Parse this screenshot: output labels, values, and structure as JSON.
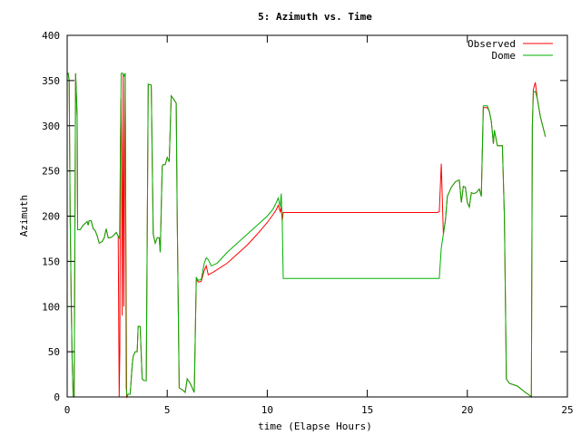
{
  "chart_data": {
    "type": "line",
    "title": "5: Azimuth vs. Time",
    "xlabel": "time (Elapse Hours)",
    "ylabel": "Azimuth",
    "xlim": [
      0,
      25
    ],
    "ylim": [
      0,
      400
    ],
    "xticks": [
      0,
      5,
      10,
      15,
      20,
      25
    ],
    "yticks": [
      0,
      50,
      100,
      150,
      200,
      250,
      300,
      350,
      400
    ],
    "grid": false,
    "legend_position": "top-right",
    "series": [
      {
        "name": "Observed",
        "color": "#ff0000",
        "points": [
          [
            0.0,
            358
          ],
          [
            0.05,
            358
          ],
          [
            0.1,
            350
          ],
          [
            0.15,
            200
          ],
          [
            0.2,
            110
          ],
          [
            0.25,
            40
          ],
          [
            0.3,
            0
          ],
          [
            0.35,
            0
          ],
          [
            0.42,
            358
          ],
          [
            0.5,
            310
          ],
          [
            0.52,
            185
          ],
          [
            0.65,
            185
          ],
          [
            0.8,
            190
          ],
          [
            1.0,
            194
          ],
          [
            1.05,
            190
          ],
          [
            1.1,
            195
          ],
          [
            1.2,
            195
          ],
          [
            1.3,
            186
          ],
          [
            1.4,
            184
          ],
          [
            1.5,
            178
          ],
          [
            1.6,
            170
          ],
          [
            1.75,
            172
          ],
          [
            1.85,
            176
          ],
          [
            1.95,
            186
          ],
          [
            2.05,
            176
          ],
          [
            2.15,
            176
          ],
          [
            2.3,
            178
          ],
          [
            2.45,
            182
          ],
          [
            2.55,
            178
          ],
          [
            2.6,
            0
          ],
          [
            2.63,
            50
          ],
          [
            2.66,
            270
          ],
          [
            2.69,
            330
          ],
          [
            2.72,
            270
          ],
          [
            2.75,
            90
          ],
          [
            2.8,
            358
          ],
          [
            2.83,
            100
          ],
          [
            2.87,
            270
          ],
          [
            2.9,
            358
          ],
          [
            2.93,
            200
          ],
          [
            2.97,
            0
          ],
          [
            3.05,
            3
          ],
          [
            3.15,
            3
          ],
          [
            3.25,
            35
          ],
          [
            3.3,
            45
          ],
          [
            3.4,
            50
          ],
          [
            3.5,
            50
          ],
          [
            3.55,
            78
          ],
          [
            3.65,
            78
          ],
          [
            3.75,
            20
          ],
          [
            3.85,
            18
          ],
          [
            3.95,
            18
          ],
          [
            4.05,
            346
          ],
          [
            4.2,
            345
          ],
          [
            4.3,
            180
          ],
          [
            4.4,
            170
          ],
          [
            4.5,
            176
          ],
          [
            4.6,
            176
          ],
          [
            4.65,
            160
          ],
          [
            4.75,
            255
          ],
          [
            4.8,
            257
          ],
          [
            4.9,
            257
          ],
          [
            5.0,
            265
          ],
          [
            5.1,
            260
          ],
          [
            5.2,
            333
          ],
          [
            5.3,
            330
          ],
          [
            5.45,
            325
          ],
          [
            5.5,
            200
          ],
          [
            5.6,
            10
          ],
          [
            5.75,
            8
          ],
          [
            5.9,
            5
          ],
          [
            6.0,
            20
          ],
          [
            6.15,
            15
          ],
          [
            6.25,
            10
          ],
          [
            6.35,
            5
          ],
          [
            6.45,
            130
          ],
          [
            6.55,
            127
          ],
          [
            6.7,
            128
          ],
          [
            6.85,
            140
          ],
          [
            6.95,
            145
          ],
          [
            7.05,
            135
          ],
          [
            7.3,
            138
          ],
          [
            8.0,
            148
          ],
          [
            8.5,
            158
          ],
          [
            9.0,
            168
          ],
          [
            9.5,
            180
          ],
          [
            10.0,
            193
          ],
          [
            10.3,
            202
          ],
          [
            10.45,
            207
          ],
          [
            10.55,
            212
          ],
          [
            10.65,
            205
          ],
          [
            10.7,
            210
          ],
          [
            10.75,
            195
          ],
          [
            10.8,
            204
          ],
          [
            11.5,
            204
          ],
          [
            13.0,
            204
          ],
          [
            15.0,
            204
          ],
          [
            17.0,
            204
          ],
          [
            18.5,
            204
          ],
          [
            18.6,
            205
          ],
          [
            18.7,
            258
          ],
          [
            18.8,
            180
          ],
          [
            18.9,
            195
          ],
          [
            19.0,
            222
          ],
          [
            19.2,
            232
          ],
          [
            19.4,
            238
          ],
          [
            19.6,
            240
          ],
          [
            19.7,
            215
          ],
          [
            19.8,
            233
          ],
          [
            19.9,
            232
          ],
          [
            20.0,
            215
          ],
          [
            20.1,
            210
          ],
          [
            20.2,
            226
          ],
          [
            20.3,
            225
          ],
          [
            20.45,
            226
          ],
          [
            20.6,
            230
          ],
          [
            20.7,
            222
          ],
          [
            20.8,
            320
          ],
          [
            21.0,
            320
          ],
          [
            21.1,
            316
          ],
          [
            21.2,
            305
          ],
          [
            21.3,
            280
          ],
          [
            21.35,
            295
          ],
          [
            21.5,
            278
          ],
          [
            21.75,
            278
          ],
          [
            21.85,
            200
          ],
          [
            21.95,
            20
          ],
          [
            22.1,
            15
          ],
          [
            22.5,
            12
          ],
          [
            22.9,
            5
          ],
          [
            23.1,
            2
          ],
          [
            23.2,
            0
          ],
          [
            23.25,
            300
          ],
          [
            23.3,
            340
          ],
          [
            23.4,
            348
          ],
          [
            23.5,
            330
          ],
          [
            23.65,
            310
          ],
          [
            23.9,
            288
          ]
        ]
      },
      {
        "name": "Dome",
        "color": "#00b000",
        "points": [
          [
            0.0,
            358
          ],
          [
            0.05,
            358
          ],
          [
            0.1,
            350
          ],
          [
            0.15,
            200
          ],
          [
            0.2,
            110
          ],
          [
            0.25,
            40
          ],
          [
            0.3,
            0
          ],
          [
            0.35,
            0
          ],
          [
            0.42,
            358
          ],
          [
            0.5,
            310
          ],
          [
            0.52,
            185
          ],
          [
            0.65,
            185
          ],
          [
            0.8,
            190
          ],
          [
            1.0,
            194
          ],
          [
            1.05,
            190
          ],
          [
            1.1,
            195
          ],
          [
            1.2,
            195
          ],
          [
            1.3,
            186
          ],
          [
            1.4,
            184
          ],
          [
            1.5,
            178
          ],
          [
            1.6,
            170
          ],
          [
            1.75,
            172
          ],
          [
            1.85,
            176
          ],
          [
            1.95,
            186
          ],
          [
            2.05,
            176
          ],
          [
            2.15,
            176
          ],
          [
            2.3,
            178
          ],
          [
            2.45,
            182
          ],
          [
            2.55,
            178
          ],
          [
            2.62,
            175
          ],
          [
            2.7,
            358
          ],
          [
            2.78,
            358
          ],
          [
            2.85,
            355
          ],
          [
            2.9,
            358
          ],
          [
            2.95,
            10
          ],
          [
            3.0,
            0
          ],
          [
            3.05,
            3
          ],
          [
            3.15,
            3
          ],
          [
            3.25,
            35
          ],
          [
            3.3,
            45
          ],
          [
            3.4,
            50
          ],
          [
            3.5,
            50
          ],
          [
            3.55,
            78
          ],
          [
            3.65,
            78
          ],
          [
            3.75,
            20
          ],
          [
            3.85,
            18
          ],
          [
            3.95,
            18
          ],
          [
            4.05,
            346
          ],
          [
            4.2,
            345
          ],
          [
            4.3,
            180
          ],
          [
            4.4,
            170
          ],
          [
            4.5,
            176
          ],
          [
            4.6,
            176
          ],
          [
            4.65,
            160
          ],
          [
            4.75,
            255
          ],
          [
            4.8,
            257
          ],
          [
            4.9,
            257
          ],
          [
            5.0,
            265
          ],
          [
            5.1,
            260
          ],
          [
            5.2,
            333
          ],
          [
            5.3,
            330
          ],
          [
            5.45,
            325
          ],
          [
            5.5,
            200
          ],
          [
            5.6,
            10
          ],
          [
            5.75,
            8
          ],
          [
            5.9,
            5
          ],
          [
            6.0,
            20
          ],
          [
            6.15,
            15
          ],
          [
            6.25,
            10
          ],
          [
            6.35,
            5
          ],
          [
            6.45,
            132
          ],
          [
            6.55,
            129
          ],
          [
            6.7,
            130
          ],
          [
            6.85,
            148
          ],
          [
            6.95,
            154
          ],
          [
            7.05,
            152
          ],
          [
            7.2,
            145
          ],
          [
            7.5,
            148
          ],
          [
            8.0,
            160
          ],
          [
            8.5,
            170
          ],
          [
            9.0,
            180
          ],
          [
            9.5,
            190
          ],
          [
            10.0,
            200
          ],
          [
            10.3,
            208
          ],
          [
            10.45,
            215
          ],
          [
            10.55,
            220
          ],
          [
            10.65,
            210
          ],
          [
            10.7,
            225
          ],
          [
            10.75,
            195
          ],
          [
            10.8,
            131
          ],
          [
            11.5,
            131
          ],
          [
            13.0,
            131
          ],
          [
            15.0,
            131
          ],
          [
            17.0,
            131
          ],
          [
            18.5,
            131
          ],
          [
            18.6,
            131
          ],
          [
            18.7,
            165
          ],
          [
            18.8,
            180
          ],
          [
            18.9,
            195
          ],
          [
            19.0,
            222
          ],
          [
            19.2,
            232
          ],
          [
            19.4,
            238
          ],
          [
            19.6,
            240
          ],
          [
            19.7,
            215
          ],
          [
            19.8,
            233
          ],
          [
            19.9,
            232
          ],
          [
            20.0,
            215
          ],
          [
            20.1,
            210
          ],
          [
            20.2,
            226
          ],
          [
            20.3,
            225
          ],
          [
            20.45,
            226
          ],
          [
            20.6,
            230
          ],
          [
            20.7,
            222
          ],
          [
            20.8,
            322
          ],
          [
            21.0,
            322
          ],
          [
            21.1,
            316
          ],
          [
            21.2,
            305
          ],
          [
            21.3,
            280
          ],
          [
            21.35,
            295
          ],
          [
            21.5,
            278
          ],
          [
            21.75,
            278
          ],
          [
            21.85,
            200
          ],
          [
            21.95,
            20
          ],
          [
            22.1,
            15
          ],
          [
            22.5,
            12
          ],
          [
            22.9,
            5
          ],
          [
            23.1,
            2
          ],
          [
            23.2,
            0
          ],
          [
            23.25,
            300
          ],
          [
            23.3,
            337
          ],
          [
            23.4,
            338
          ],
          [
            23.5,
            330
          ],
          [
            23.65,
            310
          ],
          [
            23.9,
            288
          ]
        ]
      }
    ]
  }
}
